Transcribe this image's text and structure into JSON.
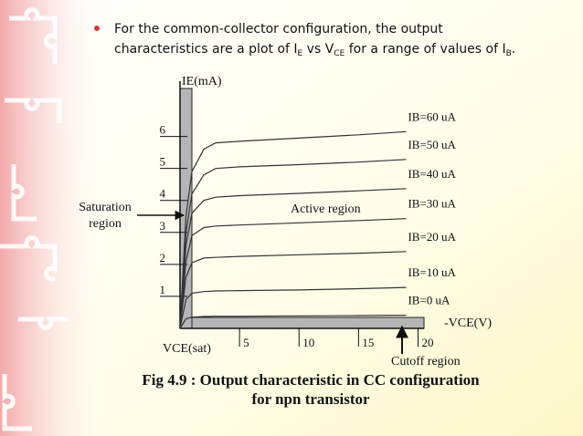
{
  "bullet": [
    "For the common-collector configuration, the output",
    "characteristics are a plot of I",
    "E",
    " vs V",
    "CE",
    " for a range of values of I",
    "B",
    "."
  ],
  "chart_data": {
    "type": "line",
    "y_label": "IE(mA)",
    "x_label": "-VCE(V)",
    "annotations": {
      "saturation": [
        "Saturation",
        "region"
      ],
      "active": "Active region",
      "vce_sat": "VCE(sat)",
      "cutoff": "Cutoff region"
    },
    "caption": [
      "Fig 4.9 : Output characteristic in CC configuration",
      "for npn transistor"
    ],
    "x": [
      0,
      0.5,
      1,
      2,
      3,
      5,
      10,
      15,
      19
    ],
    "series": [
      {
        "name": "IB=60 uA",
        "color": "#333333",
        "values": [
          0,
          3.5,
          4.9,
          5.6,
          5.8,
          5.85,
          5.95,
          6.05,
          6.15
        ]
      },
      {
        "name": "IB=50 uA",
        "color": "#333333",
        "values": [
          0,
          3.0,
          4.2,
          4.8,
          5.0,
          5.05,
          5.12,
          5.2,
          5.28
        ]
      },
      {
        "name": "IB=40 uA",
        "color": "#333333",
        "values": [
          0,
          2.6,
          3.6,
          4.0,
          4.1,
          4.15,
          4.22,
          4.3,
          4.37
        ]
      },
      {
        "name": "IB=30 uA",
        "color": "#333333",
        "values": [
          0,
          2.1,
          2.9,
          3.15,
          3.2,
          3.23,
          3.3,
          3.37,
          3.43
        ]
      },
      {
        "name": "IB=20 uA",
        "color": "#333333",
        "values": [
          0,
          1.6,
          2.05,
          2.2,
          2.22,
          2.25,
          2.3,
          2.35,
          2.4
        ]
      },
      {
        "name": "IB=10 uA",
        "color": "#333333",
        "values": [
          0,
          0.9,
          1.1,
          1.15,
          1.17,
          1.18,
          1.2,
          1.24,
          1.28
        ]
      },
      {
        "name": "IB=0 uA",
        "color": "#333333",
        "values": [
          0,
          0.3,
          0.35,
          0.37,
          0.38,
          0.38,
          0.39,
          0.4,
          0.41
        ]
      }
    ],
    "xlim": [
      0,
      20.5
    ],
    "ylim": [
      0,
      7.5
    ],
    "xticks": [
      5,
      10,
      15,
      20
    ],
    "yticks": [
      1,
      2,
      3,
      4,
      5,
      6
    ]
  }
}
